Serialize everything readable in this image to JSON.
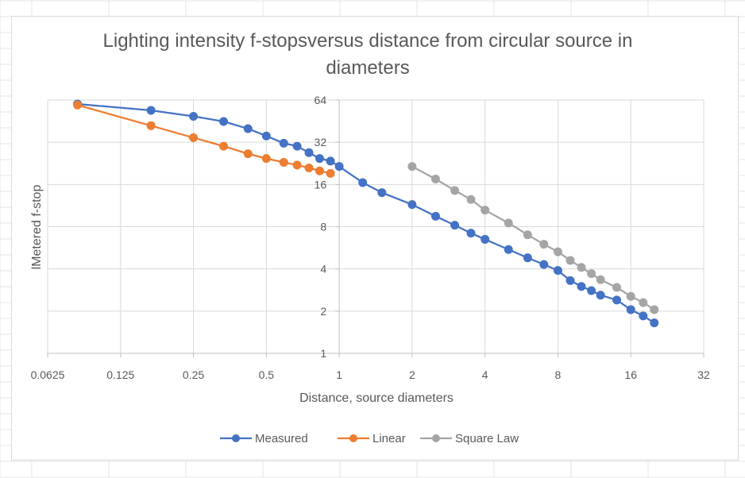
{
  "chart_data": {
    "type": "scatter",
    "title_lines": [
      "Lighting intensity f-stopsversus distance from circular source in",
      "diameters"
    ],
    "xlabel": "Distance, source diameters",
    "ylabel": "lMetered f-stop",
    "x_scale": "log2",
    "y_scale": "log2",
    "xlim": [
      0.0625,
      32
    ],
    "ylim": [
      1,
      64
    ],
    "x_ticks": [
      "0.0625",
      "0.125",
      "0.25",
      "0.5",
      "1",
      "2",
      "4",
      "8",
      "16",
      "32"
    ],
    "y_ticks": [
      "1",
      "2",
      "4",
      "8",
      "16",
      "32",
      "64"
    ],
    "grid": "major",
    "legend_position": "bottom",
    "series": [
      {
        "name": "Measured",
        "color": "#4472C4",
        "points": [
          [
            0.083,
            60
          ],
          [
            0.167,
            54
          ],
          [
            0.25,
            49
          ],
          [
            0.333,
            45
          ],
          [
            0.42,
            40
          ],
          [
            0.5,
            35.5
          ],
          [
            0.59,
            31.5
          ],
          [
            0.67,
            30
          ],
          [
            0.75,
            27
          ],
          [
            0.83,
            24.5
          ],
          [
            0.92,
            23.5
          ],
          [
            1.0,
            21.5
          ],
          [
            1.25,
            16.5
          ],
          [
            1.5,
            14
          ],
          [
            2.0,
            11.5
          ],
          [
            2.5,
            9.5
          ],
          [
            3.0,
            8.2
          ],
          [
            3.5,
            7.2
          ],
          [
            4.0,
            6.5
          ],
          [
            5.0,
            5.5
          ],
          [
            6.0,
            4.8
          ],
          [
            7.0,
            4.3
          ],
          [
            8.0,
            3.9
          ],
          [
            9.0,
            3.3
          ],
          [
            10.0,
            3.0
          ],
          [
            11.0,
            2.8
          ],
          [
            12.0,
            2.6
          ],
          [
            14.0,
            2.4
          ],
          [
            16.0,
            2.05
          ],
          [
            18.0,
            1.85
          ],
          [
            20.0,
            1.65
          ]
        ]
      },
      {
        "name": "Linear",
        "color": "#ED7D31",
        "points": [
          [
            0.083,
            59
          ],
          [
            0.167,
            42
          ],
          [
            0.25,
            34.5
          ],
          [
            0.333,
            30
          ],
          [
            0.42,
            26.5
          ],
          [
            0.5,
            24.5
          ],
          [
            0.59,
            23
          ],
          [
            0.67,
            22
          ],
          [
            0.75,
            21
          ],
          [
            0.83,
            20
          ],
          [
            0.92,
            19.2
          ]
        ]
      },
      {
        "name": "Square Law",
        "color": "#A5A5A5",
        "points": [
          [
            2.0,
            21.5
          ],
          [
            2.5,
            17.5
          ],
          [
            3.0,
            14.5
          ],
          [
            3.5,
            12.5
          ],
          [
            4.0,
            10.5
          ],
          [
            5.0,
            8.5
          ],
          [
            6.0,
            7.0
          ],
          [
            7.0,
            6.0
          ],
          [
            8.0,
            5.3
          ],
          [
            9.0,
            4.6
          ],
          [
            10.0,
            4.1
          ],
          [
            11.0,
            3.7
          ],
          [
            12.0,
            3.35
          ],
          [
            14.0,
            2.95
          ],
          [
            16.0,
            2.55
          ],
          [
            18.0,
            2.3
          ],
          [
            20.0,
            2.05
          ]
        ]
      }
    ]
  }
}
